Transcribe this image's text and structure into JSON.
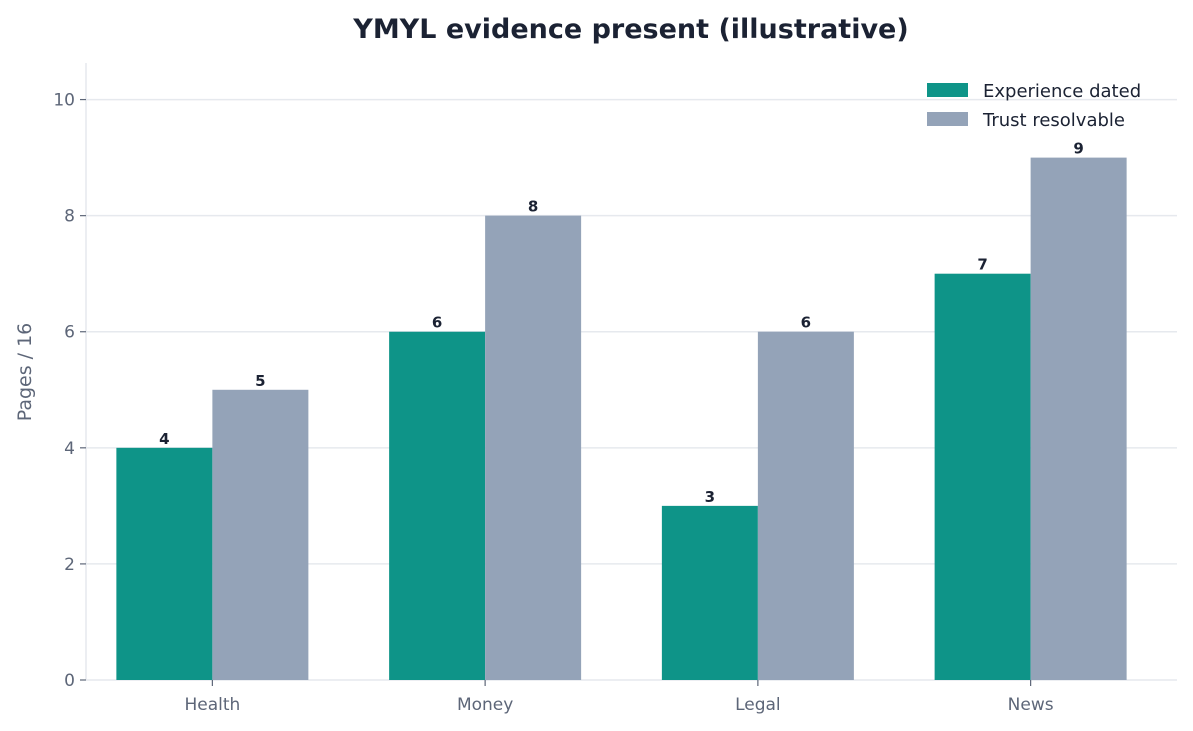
{
  "chart_data": {
    "type": "bar",
    "title": "YMYL evidence present (illustrative)",
    "xlabel": "",
    "ylabel": "Pages / 16",
    "categories": [
      "Health",
      "Money",
      "Legal",
      "News"
    ],
    "series": [
      {
        "name": "Experience dated",
        "values": [
          4,
          6,
          3,
          7
        ],
        "color": "#0e9488"
      },
      {
        "name": "Trust resolvable",
        "values": [
          5,
          8,
          6,
          9
        ],
        "color": "#94a3b8"
      }
    ],
    "ylim": [
      0,
      10.63
    ],
    "yticks": [
      0,
      2,
      4,
      6,
      8,
      10
    ],
    "grid": "y",
    "legend": "top-right"
  }
}
